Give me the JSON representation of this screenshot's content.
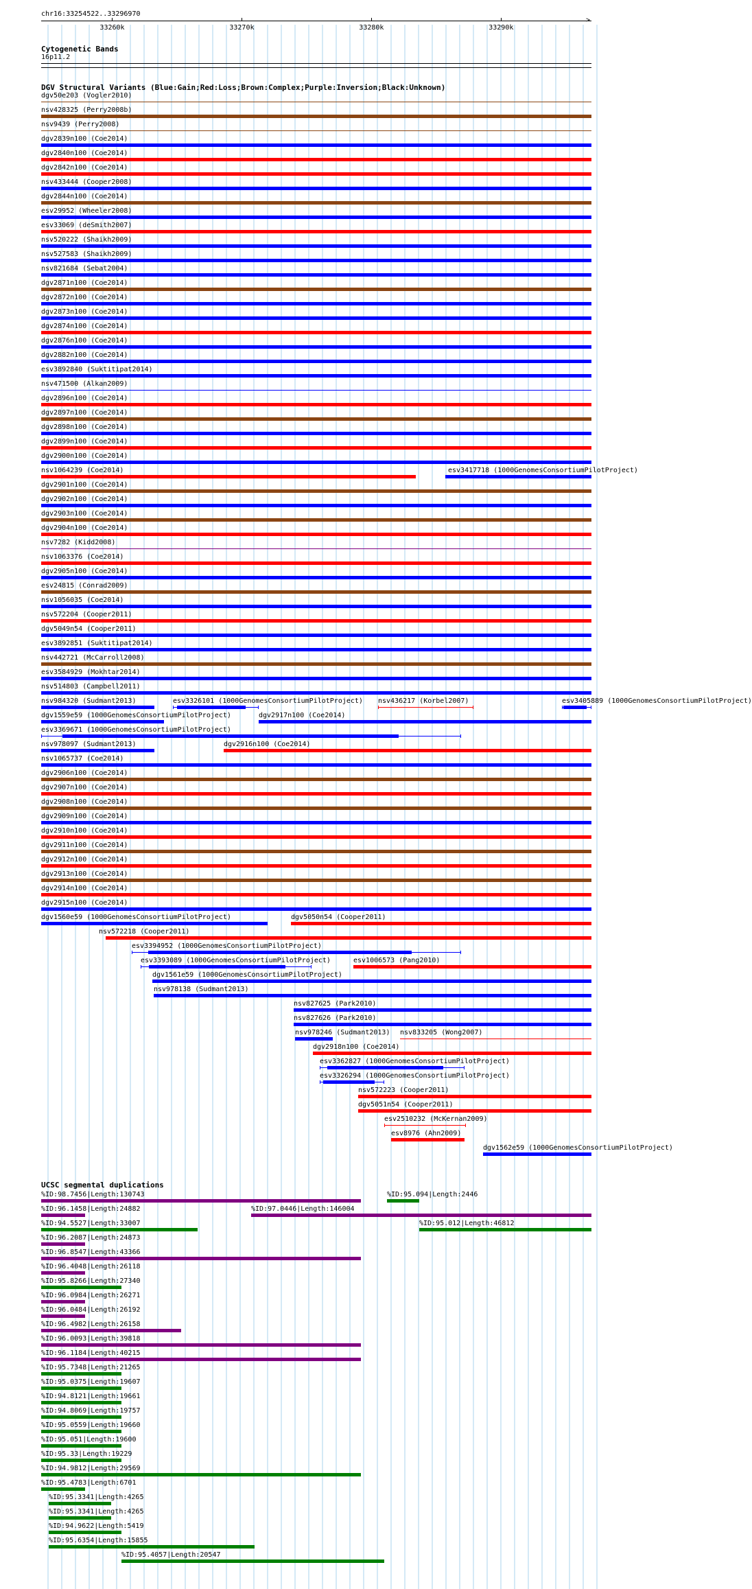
{
  "colors": {
    "gain": "#0000ff",
    "loss": "#ff0000",
    "complex": "#8b4513",
    "inversion": "#800080",
    "unknown": "#000000",
    "sd_purple": "#800080",
    "sd_green": "#008000",
    "grid": "#aad3ee"
  },
  "ruler": {
    "label": "chr16:33254522..33296970",
    "range": [
      33254522,
      33296970
    ],
    "ticks": [
      {
        "pos": 33260000,
        "label": "33260k"
      },
      {
        "pos": 33270000,
        "label": "33270k"
      },
      {
        "pos": 33280000,
        "label": "33280k"
      },
      {
        "pos": 33290000,
        "label": "33290k"
      }
    ]
  },
  "cytobands": {
    "title": "Cytogenetic Bands",
    "band": "16p11.2"
  },
  "dgv_title": "DGV Structural Variants (Blue:Gain;Red:Loss;Brown:Complex;Purple:Inversion;Black:Unknown)",
  "dgv": [
    {
      "rowIdx": 0,
      "label": "dgv50e203 (Vogler2010)",
      "start": 33254522,
      "end": 33296970,
      "type": "complex",
      "thin": true
    },
    {
      "rowIdx": 1,
      "label": "nsv428325 (Perry2008b)",
      "start": 33254522,
      "end": 33296970,
      "type": "complex"
    },
    {
      "rowIdx": 2,
      "label": "nsv9439 (Perry2008)",
      "start": 33254522,
      "end": 33296970,
      "type": "complex",
      "thin": true
    },
    {
      "rowIdx": 3,
      "label": "dgv2839n100 (Coe2014)",
      "start": 33254522,
      "end": 33296970,
      "type": "gain"
    },
    {
      "rowIdx": 4,
      "label": "dgv2840n100 (Coe2014)",
      "start": 33254522,
      "end": 33296970,
      "type": "loss"
    },
    {
      "rowIdx": 5,
      "label": "dgv2842n100 (Coe2014)",
      "start": 33254522,
      "end": 33296970,
      "type": "loss"
    },
    {
      "rowIdx": 6,
      "label": "nsv433444 (Cooper2008)",
      "start": 33254522,
      "end": 33296970,
      "type": "gain"
    },
    {
      "rowIdx": 7,
      "label": "dgv2844n100 (Coe2014)",
      "start": 33254522,
      "end": 33296970,
      "type": "complex"
    },
    {
      "rowIdx": 8,
      "label": "esv29952 (Wheeler2008)",
      "start": 33254522,
      "end": 33296970,
      "type": "gain"
    },
    {
      "rowIdx": 9,
      "label": "esv33069 (deSmith2007)",
      "start": 33254522,
      "end": 33296970,
      "type": "loss"
    },
    {
      "rowIdx": 10,
      "label": "nsv520222 (Shaikh2009)",
      "start": 33254522,
      "end": 33296970,
      "type": "gain"
    },
    {
      "rowIdx": 11,
      "label": "nsv527583 (Shaikh2009)",
      "start": 33254522,
      "end": 33296970,
      "type": "gain"
    },
    {
      "rowIdx": 12,
      "label": "nsv821684 (Sebat2004)",
      "start": 33254522,
      "end": 33296970,
      "type": "gain"
    },
    {
      "rowIdx": 13,
      "label": "dgv2871n100 (Coe2014)",
      "start": 33254522,
      "end": 33296970,
      "type": "complex"
    },
    {
      "rowIdx": 14,
      "label": "dgv2872n100 (Coe2014)",
      "start": 33254522,
      "end": 33296970,
      "type": "gain"
    },
    {
      "rowIdx": 15,
      "label": "dgv2873n100 (Coe2014)",
      "start": 33254522,
      "end": 33296970,
      "type": "gain"
    },
    {
      "rowIdx": 16,
      "label": "dgv2874n100 (Coe2014)",
      "start": 33254522,
      "end": 33296970,
      "type": "loss"
    },
    {
      "rowIdx": 17,
      "label": "dgv2876n100 (Coe2014)",
      "start": 33254522,
      "end": 33296970,
      "type": "gain"
    },
    {
      "rowIdx": 18,
      "label": "dgv2882n100 (Coe2014)",
      "start": 33254522,
      "end": 33296970,
      "type": "gain"
    },
    {
      "rowIdx": 19,
      "label": "esv3892840 (Suktitipat2014)",
      "start": 33254522,
      "end": 33296970,
      "type": "gain"
    },
    {
      "rowIdx": 20,
      "label": "nsv471500 (Alkan2009)",
      "start": 33254522,
      "end": 33296970,
      "type": "gain",
      "thin": true
    },
    {
      "rowIdx": 21,
      "label": "dgv2896n100 (Coe2014)",
      "start": 33254522,
      "end": 33296970,
      "type": "loss"
    },
    {
      "rowIdx": 22,
      "label": "dgv2897n100 (Coe2014)",
      "start": 33254522,
      "end": 33296970,
      "type": "complex"
    },
    {
      "rowIdx": 23,
      "label": "dgv2898n100 (Coe2014)",
      "start": 33254522,
      "end": 33296970,
      "type": "gain"
    },
    {
      "rowIdx": 24,
      "label": "dgv2899n100 (Coe2014)",
      "start": 33254522,
      "end": 33296970,
      "type": "loss"
    },
    {
      "rowIdx": 25,
      "label": "dgv2900n100 (Coe2014)",
      "start": 33254522,
      "end": 33296970,
      "type": "gain"
    },
    {
      "rowIdx": 26,
      "label": "nsv1064239 (Coe2014)",
      "start": 33254522,
      "end": 33283410,
      "type": "loss"
    },
    {
      "rowIdx": 26,
      "label": "esv3417718 (1000GenomesConsortiumPilotProject)",
      "start": 33285670,
      "end": 33296970,
      "type": "gain",
      "labelInside": true
    },
    {
      "rowIdx": 27,
      "label": "dgv2901n100 (Coe2014)",
      "start": 33254522,
      "end": 33296970,
      "type": "complex"
    },
    {
      "rowIdx": 28,
      "label": "dgv2902n100 (Coe2014)",
      "start": 33254522,
      "end": 33296970,
      "type": "gain"
    },
    {
      "rowIdx": 29,
      "label": "dgv2903n100 (Coe2014)",
      "start": 33254522,
      "end": 33296970,
      "type": "complex"
    },
    {
      "rowIdx": 30,
      "label": "dgv2904n100 (Coe2014)",
      "start": 33254522,
      "end": 33296970,
      "type": "loss"
    },
    {
      "rowIdx": 31,
      "label": "nsv7282 (Kidd2008)",
      "start": 33254522,
      "end": 33296970,
      "type": "inversion",
      "thin": true
    },
    {
      "rowIdx": 32,
      "label": "nsv1063376 (Coe2014)",
      "start": 33254522,
      "end": 33296970,
      "type": "loss"
    },
    {
      "rowIdx": 33,
      "label": "dgv2905n100 (Coe2014)",
      "start": 33254522,
      "end": 33296970,
      "type": "gain"
    },
    {
      "rowIdx": 34,
      "label": "esv24815 (Conrad2009)",
      "start": 33254522,
      "end": 33296970,
      "type": "complex"
    },
    {
      "rowIdx": 35,
      "label": "nsv1056035 (Coe2014)",
      "start": 33254522,
      "end": 33296970,
      "type": "gain"
    },
    {
      "rowIdx": 36,
      "label": "nsv572204 (Cooper2011)",
      "start": 33254522,
      "end": 33296970,
      "type": "loss"
    },
    {
      "rowIdx": 37,
      "label": "dgv5049n54 (Cooper2011)",
      "start": 33254522,
      "end": 33296970,
      "type": "gain"
    },
    {
      "rowIdx": 38,
      "label": "esv3892851 (Suktitipat2014)",
      "start": 33254522,
      "end": 33296970,
      "type": "gain"
    },
    {
      "rowIdx": 39,
      "label": "nsv442721 (McCarroll2008)",
      "start": 33254522,
      "end": 33296970,
      "type": "complex"
    },
    {
      "rowIdx": 40,
      "label": "esv3584929 (Mokhtar2014)",
      "start": 33254522,
      "end": 33296970,
      "type": "gain"
    },
    {
      "rowIdx": 41,
      "label": "nsv514803 (Campbell2011)",
      "start": 33254522,
      "end": 33296970,
      "type": "gain"
    },
    {
      "rowIdx": 42,
      "label": "nsv984320 (Sudmant2013)",
      "start": 33254522,
      "end": 33263250,
      "type": "gain"
    },
    {
      "rowIdx": 42,
      "label": "esv3326101 (1000GenomesConsortiumPilotProject)",
      "start": 33264700,
      "end": 33271300,
      "type": "gain",
      "hollow": true
    },
    {
      "rowIdx": 42,
      "label": "nsv436217 (Korbel2007)",
      "start": 33280500,
      "end": 33287850,
      "type": "loss",
      "thin": true
    },
    {
      "rowIdx": 42,
      "label": "esv3405889 (1000GenomesConsortiumPilotProject)",
      "start": 33294690,
      "end": 33296970,
      "type": "gain",
      "hollow": true
    },
    {
      "rowIdx": 43,
      "label": "dgv1559e59 (1000GenomesConsortiumPilotProject)",
      "start": 33254522,
      "end": 33264000,
      "type": "gain"
    },
    {
      "rowIdx": 43,
      "label": "dgv2917n100 (Coe2014)",
      "start": 33271300,
      "end": 33296970,
      "type": "gain"
    },
    {
      "rowIdx": 44,
      "label": "esv3369671 (1000GenomesConsortiumPilotProject)",
      "start": 33254522,
      "end": 33286900,
      "type": "gain",
      "hollow": true
    },
    {
      "rowIdx": 45,
      "label": "nsv978097 (Sudmant2013)",
      "start": 33254522,
      "end": 33263250,
      "type": "gain"
    },
    {
      "rowIdx": 45,
      "label": "dgv2916n100 (Coe2014)",
      "start": 33268600,
      "end": 33296970,
      "type": "loss"
    },
    {
      "rowIdx": 46,
      "label": "nsv1065737 (Coe2014)",
      "start": 33254522,
      "end": 33296970,
      "type": "gain"
    },
    {
      "rowIdx": 47,
      "label": "dgv2906n100 (Coe2014)",
      "start": 33254522,
      "end": 33296970,
      "type": "complex"
    },
    {
      "rowIdx": 48,
      "label": "dgv2907n100 (Coe2014)",
      "start": 33254522,
      "end": 33296970,
      "type": "loss"
    },
    {
      "rowIdx": 49,
      "label": "dgv2908n100 (Coe2014)",
      "start": 33254522,
      "end": 33296970,
      "type": "complex"
    },
    {
      "rowIdx": 50,
      "label": "dgv2909n100 (Coe2014)",
      "start": 33254522,
      "end": 33296970,
      "type": "gain"
    },
    {
      "rowIdx": 51,
      "label": "dgv2910n100 (Coe2014)",
      "start": 33254522,
      "end": 33296970,
      "type": "loss"
    },
    {
      "rowIdx": 52,
      "label": "dgv2911n100 (Coe2014)",
      "start": 33254522,
      "end": 33296970,
      "type": "complex"
    },
    {
      "rowIdx": 53,
      "label": "dgv2912n100 (Coe2014)",
      "start": 33254522,
      "end": 33296970,
      "type": "loss"
    },
    {
      "rowIdx": 54,
      "label": "dgv2913n100 (Coe2014)",
      "start": 33254522,
      "end": 33296970,
      "type": "complex"
    },
    {
      "rowIdx": 55,
      "label": "dgv2914n100 (Coe2014)",
      "start": 33254522,
      "end": 33296970,
      "type": "loss"
    },
    {
      "rowIdx": 56,
      "label": "dgv2915n100 (Coe2014)",
      "start": 33254522,
      "end": 33296970,
      "type": "gain"
    },
    {
      "rowIdx": 57,
      "label": "dgv1560e59 (1000GenomesConsortiumPilotProject)",
      "start": 33254522,
      "end": 33272000,
      "type": "gain"
    },
    {
      "rowIdx": 57,
      "label": "dgv5050n54 (Cooper2011)",
      "start": 33273800,
      "end": 33296970,
      "type": "loss"
    },
    {
      "rowIdx": 58,
      "label": "nsv572218 (Cooper2011)",
      "start": 33259500,
      "end": 33296970,
      "type": "loss",
      "labelOffset": -10
    },
    {
      "rowIdx": 59,
      "label": "esv3394952 (1000GenomesConsortiumPilotProject)",
      "start": 33261500,
      "end": 33286900,
      "type": "gain",
      "hollow": true
    },
    {
      "rowIdx": 60,
      "label": "esv3393089 (1000GenomesConsortiumPilotProject)",
      "start": 33262200,
      "end": 33275400,
      "type": "gain",
      "hollow": true
    },
    {
      "rowIdx": 60,
      "label": "esv1006573 (Pang2010)",
      "start": 33278600,
      "end": 33296970,
      "type": "loss"
    },
    {
      "rowIdx": 61,
      "label": "dgv1561e59 (1000GenomesConsortiumPilotProject)",
      "start": 33263100,
      "end": 33296970,
      "type": "gain"
    },
    {
      "rowIdx": 62,
      "label": "nsv978138 (Sudmant2013)",
      "start": 33263200,
      "end": 33296970,
      "type": "gain"
    },
    {
      "rowIdx": 63,
      "label": "nsv827625 (Park2010)",
      "start": 33274000,
      "end": 33296970,
      "type": "gain"
    },
    {
      "rowIdx": 64,
      "label": "nsv827626 (Park2010)",
      "start": 33274000,
      "end": 33296970,
      "type": "gain"
    },
    {
      "rowIdx": 65,
      "label": "nsv978246 (Sudmant2013)",
      "start": 33274100,
      "end": 33277000,
      "type": "gain"
    },
    {
      "rowIdx": 65,
      "label": "nsv833205 (Wong2007)",
      "start": 33282200,
      "end": 33296970,
      "type": "loss",
      "thin": true
    },
    {
      "rowIdx": 66,
      "label": "dgv2918n100 (Coe2014)",
      "start": 33275500,
      "end": 33296970,
      "type": "loss"
    },
    {
      "rowIdx": 67,
      "label": "esv3362827 (1000GenomesConsortiumPilotProject)",
      "start": 33276000,
      "end": 33287200,
      "type": "gain",
      "hollow": true
    },
    {
      "rowIdx": 68,
      "label": "esv3326294 (1000GenomesConsortiumPilotProject)",
      "start": 33276000,
      "end": 33281000,
      "type": "gain",
      "hollow": true
    },
    {
      "rowIdx": 69,
      "label": "nsv572223 (Cooper2011)",
      "start": 33279000,
      "end": 33296970,
      "type": "loss"
    },
    {
      "rowIdx": 70,
      "label": "dgv5051n54 (Cooper2011)",
      "start": 33279000,
      "end": 33296970,
      "type": "loss"
    },
    {
      "rowIdx": 71,
      "label": "esv2510232 (McKernan2009)",
      "start": 33281000,
      "end": 33287300,
      "type": "loss",
      "thin": true
    },
    {
      "rowIdx": 72,
      "label": "esv8976 (Ahn2009)",
      "start": 33281500,
      "end": 33287200,
      "type": "loss"
    },
    {
      "rowIdx": 73,
      "label": "dgv1562e59 (1000GenomesConsortiumPilotProject)",
      "start": 33288600,
      "end": 33296970,
      "type": "gain"
    }
  ],
  "sd_title": "UCSC segmental duplications",
  "sd": [
    {
      "rowIdx": 0,
      "label": "%ID:98.7456|Length:130743",
      "start": 33254522,
      "end": 33279200,
      "color": "purple"
    },
    {
      "rowIdx": 0,
      "label": "%ID:95.094|Length:2446",
      "start": 33281200,
      "end": 33283700,
      "color": "green"
    },
    {
      "rowIdx": 1,
      "label": "%ID:96.1458|Length:24882",
      "start": 33254522,
      "end": 33257900,
      "color": "purple"
    },
    {
      "rowIdx": 1,
      "label": "%ID:97.0446|Length:146004",
      "start": 33270700,
      "end": 33296970,
      "color": "purple"
    },
    {
      "rowIdx": 2,
      "label": "%ID:94.5527|Length:33007",
      "start": 33254522,
      "end": 33266600,
      "color": "green"
    },
    {
      "rowIdx": 2,
      "label": "%ID:95.012|Length:46812",
      "start": 33283700,
      "end": 33296970,
      "color": "green"
    },
    {
      "rowIdx": 3,
      "label": "%ID:96.2087|Length:24873",
      "start": 33254522,
      "end": 33257900,
      "color": "purple"
    },
    {
      "rowIdx": 4,
      "label": "%ID:96.8547|Length:43366",
      "start": 33254522,
      "end": 33279200,
      "color": "purple"
    },
    {
      "rowIdx": 5,
      "label": "%ID:96.4048|Length:26118",
      "start": 33254522,
      "end": 33257900,
      "color": "purple"
    },
    {
      "rowIdx": 6,
      "label": "%ID:95.8266|Length:27340",
      "start": 33254522,
      "end": 33260700,
      "color": "green"
    },
    {
      "rowIdx": 7,
      "label": "%ID:96.0984|Length:26271",
      "start": 33254522,
      "end": 33257900,
      "color": "purple"
    },
    {
      "rowIdx": 8,
      "label": "%ID:96.0484|Length:26192",
      "start": 33254522,
      "end": 33257900,
      "color": "purple"
    },
    {
      "rowIdx": 9,
      "label": "%ID:96.4982|Length:26158",
      "start": 33254522,
      "end": 33265300,
      "color": "purple"
    },
    {
      "rowIdx": 10,
      "label": "%ID:96.0093|Length:39818",
      "start": 33254522,
      "end": 33279200,
      "color": "purple"
    },
    {
      "rowIdx": 11,
      "label": "%ID:96.1184|Length:40215",
      "start": 33254522,
      "end": 33279200,
      "color": "purple"
    },
    {
      "rowIdx": 12,
      "label": "%ID:95.7348|Length:21265",
      "start": 33254522,
      "end": 33260700,
      "color": "green"
    },
    {
      "rowIdx": 13,
      "label": "%ID:95.0375|Length:19607",
      "start": 33254522,
      "end": 33260700,
      "color": "green"
    },
    {
      "rowIdx": 14,
      "label": "%ID:94.8121|Length:19661",
      "start": 33254522,
      "end": 33260700,
      "color": "green"
    },
    {
      "rowIdx": 15,
      "label": "%ID:94.8069|Length:19757",
      "start": 33254522,
      "end": 33260700,
      "color": "green"
    },
    {
      "rowIdx": 16,
      "label": "%ID:95.0559|Length:19660",
      "start": 33254522,
      "end": 33260700,
      "color": "green"
    },
    {
      "rowIdx": 17,
      "label": "%ID:95.051|Length:19600",
      "start": 33254522,
      "end": 33260700,
      "color": "green"
    },
    {
      "rowIdx": 18,
      "label": "%ID:95.33|Length:19229",
      "start": 33254522,
      "end": 33260700,
      "color": "green"
    },
    {
      "rowIdx": 19,
      "label": "%ID:94.9812|Length:29569",
      "start": 33254522,
      "end": 33279200,
      "color": "green"
    },
    {
      "rowIdx": 20,
      "label": "%ID:95.4783|Length:6701",
      "start": 33254522,
      "end": 33257900,
      "color": "green"
    },
    {
      "rowIdx": 21,
      "label": "%ID:95.3341|Length:4265",
      "start": 33255100,
      "end": 33259900,
      "color": "green"
    },
    {
      "rowIdx": 22,
      "label": "%ID:95.3341|Length:4265",
      "start": 33255100,
      "end": 33259900,
      "color": "green"
    },
    {
      "rowIdx": 23,
      "label": "%ID:94.9622|Length:5419",
      "start": 33255100,
      "end": 33260700,
      "color": "green"
    },
    {
      "rowIdx": 24,
      "label": "%ID:95.6354|Length:15855",
      "start": 33255100,
      "end": 33271000,
      "color": "green"
    },
    {
      "rowIdx": 25,
      "label": "%ID:95.4057|Length:20547",
      "start": 33260700,
      "end": 33281000,
      "color": "green"
    }
  ]
}
